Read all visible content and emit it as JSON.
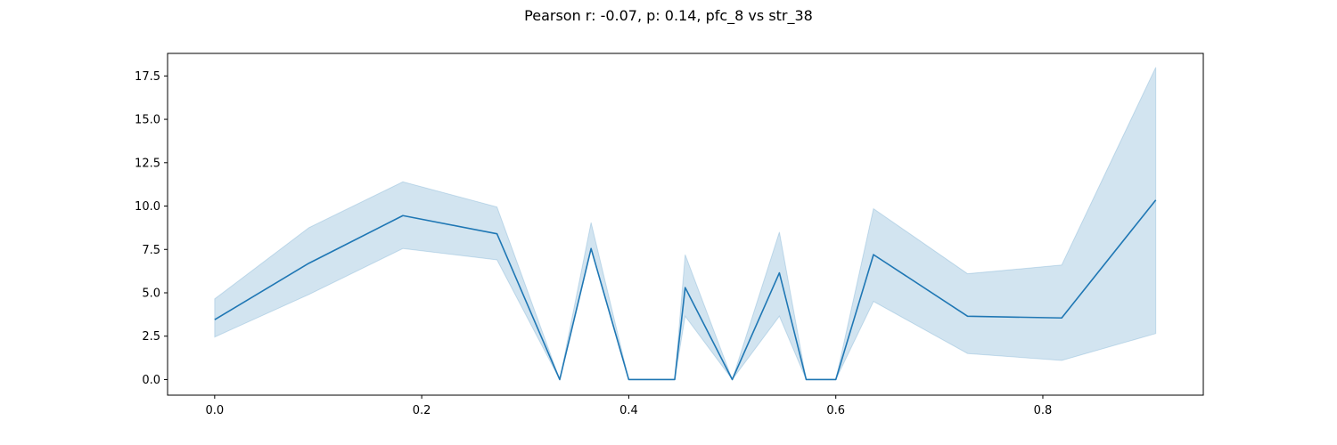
{
  "chart_data": {
    "type": "line",
    "title": "Pearson r: -0.07, p: 0.14, pfc_8 vs str_38",
    "xlabel": "",
    "ylabel": "",
    "xlim": [
      -0.0455,
      0.955
    ],
    "ylim": [
      -0.9,
      18.8
    ],
    "xticks": [
      0.0,
      0.2,
      0.4,
      0.6,
      0.8
    ],
    "xtick_labels": [
      "0.0",
      "0.2",
      "0.4",
      "0.6",
      "0.8"
    ],
    "yticks": [
      0.0,
      2.5,
      5.0,
      7.5,
      10.0,
      12.5,
      15.0,
      17.5
    ],
    "ytick_labels": [
      "0.0",
      "2.5",
      "5.0",
      "7.5",
      "10.0",
      "12.5",
      "15.0",
      "17.5"
    ],
    "grid": false,
    "colors": {
      "line": "#1f77b4",
      "band": "#1f77b4",
      "band_opacity": 0.2
    },
    "series": [
      {
        "x": [
          0.0,
          0.0909,
          0.1818,
          0.2727,
          0.3333,
          0.3636,
          0.4,
          0.4444,
          0.4545,
          0.5,
          0.5455,
          0.5714,
          0.6,
          0.6364,
          0.7273,
          0.8182,
          0.9091
        ],
        "y": [
          3.45,
          6.7,
          9.45,
          8.4,
          0.0,
          7.55,
          0.0,
          0.0,
          5.3,
          0.0,
          6.15,
          0.0,
          0.0,
          7.2,
          3.65,
          3.55,
          10.35
        ],
        "ci_lower": [
          2.45,
          4.9,
          7.55,
          6.9,
          0.0,
          7.55,
          0.0,
          0.0,
          3.65,
          0.0,
          3.65,
          0.0,
          0.0,
          4.5,
          1.5,
          1.1,
          2.65
        ],
        "ci_upper": [
          4.65,
          8.75,
          11.4,
          9.95,
          0.0,
          9.05,
          0.0,
          0.0,
          7.2,
          0.0,
          8.5,
          0.0,
          0.0,
          9.85,
          6.1,
          6.6,
          18.0
        ]
      }
    ]
  }
}
